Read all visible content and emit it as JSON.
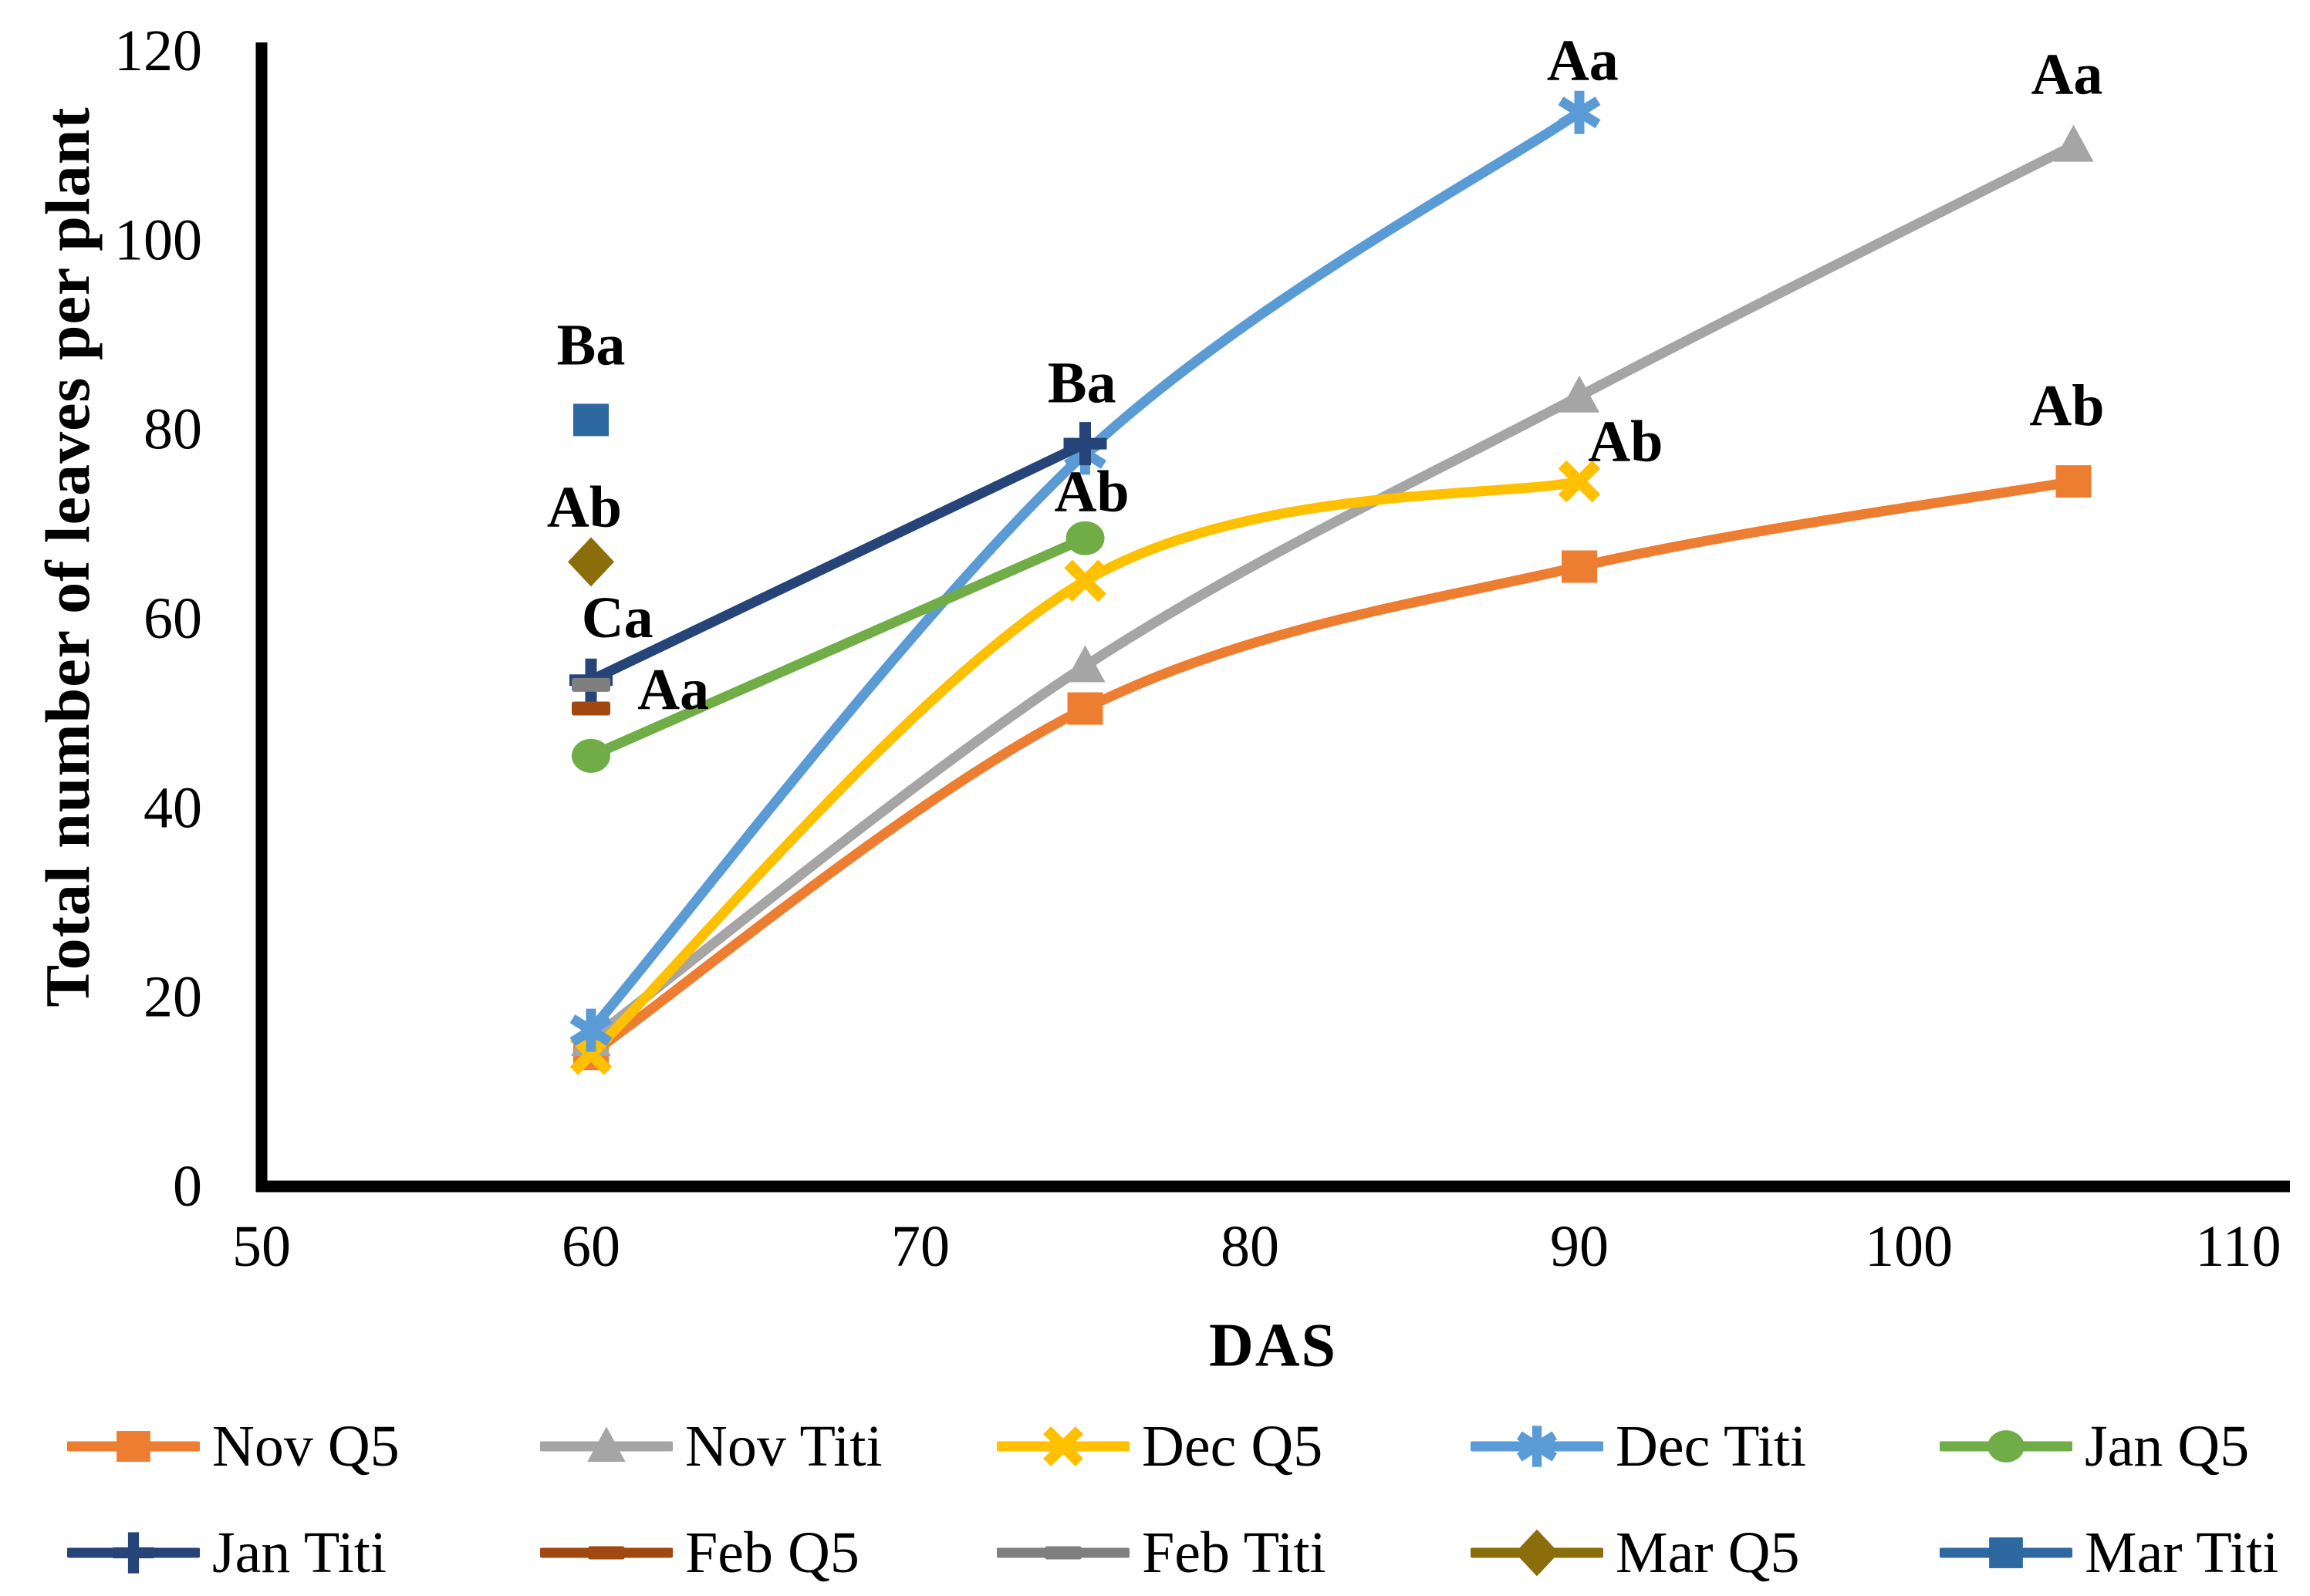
{
  "figure": {
    "background": "#ffffff",
    "axis_color": "#000000",
    "text_color": "#000000"
  },
  "chart_data": {
    "type": "line",
    "title": "",
    "xlabel": "DAS",
    "ylabel": "Total number of leaves per plant",
    "xlim": [
      50,
      110
    ],
    "ylim": [
      0,
      120
    ],
    "xticks": [
      50,
      60,
      70,
      80,
      90,
      100,
      110
    ],
    "yticks": [
      0,
      20,
      40,
      60,
      80,
      100,
      120
    ],
    "grid": false,
    "legend_position": "bottom",
    "legend_columns": 5,
    "line_style": "smooth",
    "series": [
      {
        "name": "Nov Q5",
        "color": "#ED7D31",
        "marker": "square",
        "x": [
          60,
          75,
          90,
          105
        ],
        "y": [
          14,
          50.5,
          65.5,
          74.5
        ]
      },
      {
        "name": "Nov Titi",
        "color": "#A5A5A5",
        "marker": "triangle",
        "x": [
          60,
          75,
          90,
          105
        ],
        "y": [
          15.5,
          55,
          83.5,
          110
        ]
      },
      {
        "name": "Dec Q5",
        "color": "#FFC000",
        "marker": "x",
        "x": [
          60,
          75,
          90
        ],
        "y": [
          14,
          64,
          74.5
        ]
      },
      {
        "name": "Dec Titi",
        "color": "#5B9BD5",
        "marker": "asterisk",
        "x": [
          60,
          75,
          90
        ],
        "y": [
          16.5,
          77.5,
          113.5
        ]
      },
      {
        "name": "Jan Q5",
        "color": "#70AD47",
        "marker": "circle",
        "x": [
          60,
          75
        ],
        "y": [
          45.5,
          68.5
        ]
      },
      {
        "name": "Jan Titi",
        "color": "#264478",
        "marker": "plus",
        "x": [
          60,
          75
        ],
        "y": [
          53.5,
          78.5
        ]
      },
      {
        "name": "Feb Q5",
        "color": "#A04810",
        "marker": "dash",
        "x": [
          60
        ],
        "y": [
          50.5
        ]
      },
      {
        "name": "Feb Titi",
        "color": "#7F7F7F",
        "marker": "dash",
        "x": [
          60
        ],
        "y": [
          53
        ]
      },
      {
        "name": "Mar Q5",
        "color": "#8B6D0B",
        "marker": "diamond",
        "x": [
          60
        ],
        "y": [
          66
        ]
      },
      {
        "name": "Mar Titi",
        "color": "#2D69A0",
        "marker": "square",
        "x": [
          60
        ],
        "y": [
          81
        ]
      }
    ],
    "annotations": [
      {
        "text": "Ba",
        "x": 60.0,
        "y": 88.9
      },
      {
        "text": "Ab",
        "x": 59.8,
        "y": 71.8
      },
      {
        "text": "Ca",
        "x": 60.8,
        "y": 60.1
      },
      {
        "text": "Aa",
        "x": 62.5,
        "y": 52.5
      },
      {
        "text": "Ba",
        "x": 74.9,
        "y": 84.9
      },
      {
        "text": "Ab",
        "x": 75.2,
        "y": 73.4
      },
      {
        "text": "Aa",
        "x": 90.1,
        "y": 119.0
      },
      {
        "text": "Ab",
        "x": 91.4,
        "y": 78.7
      },
      {
        "text": "Aa",
        "x": 104.8,
        "y": 117.5
      },
      {
        "text": "Ab",
        "x": 104.8,
        "y": 82.5
      }
    ]
  }
}
